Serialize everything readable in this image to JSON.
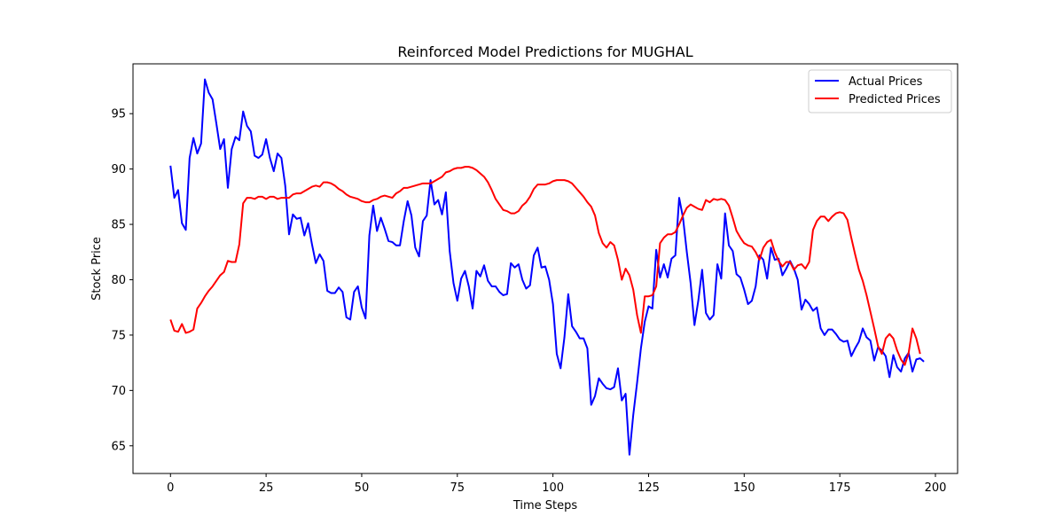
{
  "chart_data": {
    "type": "line",
    "title": "Reinforced Model Predictions for MUGHAL",
    "xlabel": "Time Steps",
    "ylabel": "Stock Price",
    "xlim": [
      -9.8,
      205.8
    ],
    "ylim": [
      62.5,
      99.5
    ],
    "xticks": [
      0,
      25,
      50,
      75,
      100,
      125,
      150,
      175,
      200
    ],
    "yticks": [
      65,
      70,
      75,
      80,
      85,
      90,
      95
    ],
    "grid": false,
    "legend_position": "top-right",
    "series": [
      {
        "name": "Actual Prices",
        "color": "#0000ff",
        "values": [
          90.3,
          87.4,
          88.1,
          85.1,
          84.5,
          91.0,
          92.8,
          91.4,
          92.3,
          98.1,
          96.9,
          96.3,
          94.1,
          91.8,
          92.7,
          88.3,
          91.8,
          92.9,
          92.6,
          95.2,
          93.9,
          93.4,
          91.2,
          91.0,
          91.3,
          92.7,
          91.0,
          89.8,
          91.4,
          91.0,
          88.5,
          84.1,
          85.9,
          85.5,
          85.6,
          84.0,
          85.1,
          83.2,
          81.5,
          82.3,
          81.7,
          79.0,
          78.8,
          78.8,
          79.3,
          78.9,
          76.6,
          76.4,
          78.9,
          79.4,
          77.5,
          76.5,
          84.0,
          86.7,
          84.4,
          85.6,
          84.6,
          83.5,
          83.4,
          83.1,
          83.1,
          85.3,
          87.1,
          85.8,
          82.9,
          82.1,
          85.3,
          85.8,
          89.0,
          86.8,
          87.2,
          85.9,
          87.9,
          82.6,
          79.7,
          78.1,
          80.1,
          80.8,
          79.4,
          77.4,
          80.8,
          80.3,
          81.3,
          79.9,
          79.4,
          79.4,
          78.9,
          78.6,
          78.7,
          81.5,
          81.1,
          81.4,
          80.0,
          79.2,
          79.5,
          82.2,
          82.9,
          81.1,
          81.2,
          80.0,
          77.8,
          73.3,
          72.0,
          74.8,
          78.7,
          75.8,
          75.3,
          74.7,
          74.7,
          73.8,
          68.7,
          69.5,
          71.1,
          70.6,
          70.2,
          70.1,
          70.3,
          72.0,
          69.1,
          69.7,
          64.2,
          67.8,
          70.7,
          73.8,
          76.2,
          77.6,
          77.4,
          82.7,
          80.2,
          81.4,
          80.2,
          81.9,
          82.2,
          87.4,
          85.6,
          82.5,
          79.7,
          75.9,
          78.1,
          80.9,
          77.0,
          76.4,
          76.8,
          81.4,
          80.1,
          86.0,
          83.1,
          82.6,
          80.5,
          80.2,
          79.1,
          77.8,
          78.1,
          79.4,
          82.2,
          81.8,
          80.1,
          82.9,
          81.8,
          81.9,
          80.4,
          81.0,
          81.7,
          81.0,
          80.0,
          77.3,
          78.2,
          77.8,
          77.2,
          77.5,
          75.6,
          75.0,
          75.5,
          75.5,
          75.1,
          74.6,
          74.4,
          74.5,
          73.1,
          73.8,
          74.4,
          75.6,
          74.8,
          74.5,
          72.7,
          73.9,
          73.6,
          73.1,
          71.2,
          73.2,
          72.1,
          71.7,
          72.9,
          73.4,
          71.7,
          72.8,
          72.9,
          72.6
        ]
      },
      {
        "name": "Predicted Prices",
        "color": "#ff0000",
        "values": [
          76.4,
          75.4,
          75.3,
          76.0,
          75.2,
          75.3,
          75.5,
          77.4,
          77.9,
          78.5,
          79.0,
          79.4,
          79.9,
          80.4,
          80.7,
          81.7,
          81.6,
          81.6,
          83.2,
          86.9,
          87.4,
          87.4,
          87.3,
          87.5,
          87.5,
          87.3,
          87.5,
          87.5,
          87.3,
          87.4,
          87.4,
          87.4,
          87.7,
          87.8,
          87.8,
          88.0,
          88.2,
          88.4,
          88.5,
          88.4,
          88.8,
          88.8,
          88.7,
          88.5,
          88.2,
          88.0,
          87.7,
          87.5,
          87.4,
          87.3,
          87.1,
          87.0,
          87.0,
          87.2,
          87.3,
          87.5,
          87.6,
          87.5,
          87.4,
          87.8,
          88.0,
          88.3,
          88.3,
          88.4,
          88.5,
          88.6,
          88.7,
          88.7,
          88.7,
          88.9,
          89.1,
          89.3,
          89.7,
          89.8,
          90.0,
          90.1,
          90.1,
          90.2,
          90.2,
          90.1,
          89.9,
          89.6,
          89.3,
          88.8,
          88.1,
          87.3,
          86.8,
          86.3,
          86.2,
          86.0,
          86.0,
          86.2,
          86.7,
          87.0,
          87.5,
          88.2,
          88.6,
          88.6,
          88.6,
          88.7,
          88.9,
          89.0,
          89.0,
          89.0,
          88.9,
          88.7,
          88.3,
          87.9,
          87.5,
          87.0,
          86.6,
          85.8,
          84.2,
          83.3,
          82.9,
          83.4,
          83.1,
          81.8,
          80.0,
          81.0,
          80.4,
          79.1,
          76.8,
          75.2,
          78.5,
          78.5,
          78.6,
          79.4,
          83.3,
          83.8,
          84.1,
          84.1,
          84.3,
          85.0,
          85.8,
          86.5,
          86.8,
          86.6,
          86.4,
          86.3,
          87.2,
          87.0,
          87.3,
          87.2,
          87.3,
          87.2,
          86.7,
          85.6,
          84.4,
          83.8,
          83.3,
          83.1,
          83.0,
          82.5,
          81.8,
          82.9,
          83.4,
          83.6,
          82.5,
          81.7,
          81.2,
          81.6,
          81.6,
          80.9,
          81.3,
          81.4,
          81.0,
          81.6,
          84.5,
          85.3,
          85.7,
          85.7,
          85.3,
          85.7,
          86.0,
          86.1,
          86.0,
          85.4,
          83.8,
          82.3,
          80.9,
          79.9,
          78.6,
          77.1,
          75.6,
          74.0,
          73.3,
          74.7,
          75.1,
          74.7,
          73.6,
          72.8,
          72.3,
          73.4,
          75.6,
          74.7,
          73.3
        ]
      }
    ]
  }
}
